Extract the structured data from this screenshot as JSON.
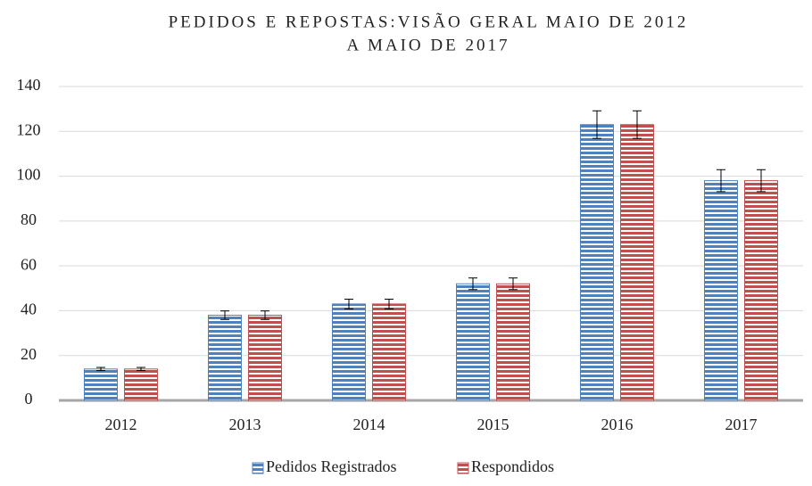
{
  "chart_data": {
    "type": "bar",
    "title": [
      "PEDIDOS E REPOSTAS:VISÃO GERAL MAIO DE 2012",
      "A MAIO DE 2017"
    ],
    "categories": [
      "2012",
      "2013",
      "2014",
      "2015",
      "2016",
      "2017"
    ],
    "series": [
      {
        "name": "Pedidos Registrados",
        "color": "#4f81bd",
        "values": [
          14,
          38,
          43,
          52,
          123,
          98
        ],
        "errors": [
          0.7,
          1.9,
          2.15,
          2.6,
          6.15,
          4.9
        ]
      },
      {
        "name": "Respondidos",
        "color": "#c0504d",
        "values": [
          14,
          38,
          43,
          52,
          123,
          98
        ],
        "errors": [
          0.7,
          1.9,
          2.15,
          2.6,
          6.15,
          4.9
        ]
      }
    ],
    "ylim": [
      0,
      140
    ],
    "yticks": [
      0,
      20,
      40,
      60,
      80,
      100,
      120,
      140
    ],
    "grid": true,
    "legend": "bottom"
  }
}
